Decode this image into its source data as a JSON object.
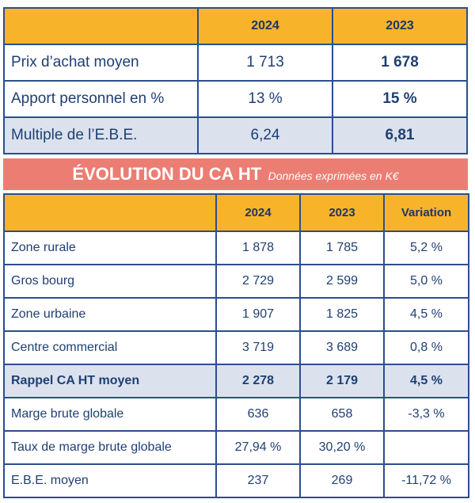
{
  "summary": {
    "col_2024": "2024",
    "col_2023": "2023",
    "rows": [
      {
        "label": "Prix d’achat moyen",
        "v2024": "1 713",
        "v2023": "1 678"
      },
      {
        "label": "Apport personnel en %",
        "v2024": "13 %",
        "v2023": "15 %"
      },
      {
        "label": "Multiple de l’E.B.E.",
        "v2024": "6,24",
        "v2023": "6,81"
      }
    ]
  },
  "banner": {
    "title": "ÉVOLUTION DU CA HT",
    "subtitle": "Données exprimées en K€"
  },
  "ca_table": {
    "col_2024": "2024",
    "col_2023": "2023",
    "col_variation": "Variation",
    "rows": [
      {
        "label": "Zone rurale",
        "v2024": "1 878",
        "v2023": "1 785",
        "variation": "5,2 %"
      },
      {
        "label": "Gros bourg",
        "v2024": "2 729",
        "v2023": "2 599",
        "variation": "5,0 %"
      },
      {
        "label": "Zone urbaine",
        "v2024": "1 907",
        "v2023": "1 825",
        "variation": "4,5 %"
      },
      {
        "label": "Centre commercial",
        "v2024": "3 719",
        "v2023": "3 689",
        "variation": "0,8 %"
      },
      {
        "label": "Rappel CA HT moyen",
        "v2024": "2 278",
        "v2023": "2 179",
        "variation": "4,5 %"
      },
      {
        "label": "Marge brute globale",
        "v2024": "636",
        "v2023": "658",
        "variation": "-3,3 %"
      },
      {
        "label": "Taux de marge brute globale",
        "v2024": "27,94 %",
        "v2023": "30,20 %",
        "variation": ""
      },
      {
        "label": "E.B.E. moyen",
        "v2024": "237",
        "v2023": "269",
        "variation": "-11,72 %"
      }
    ]
  }
}
